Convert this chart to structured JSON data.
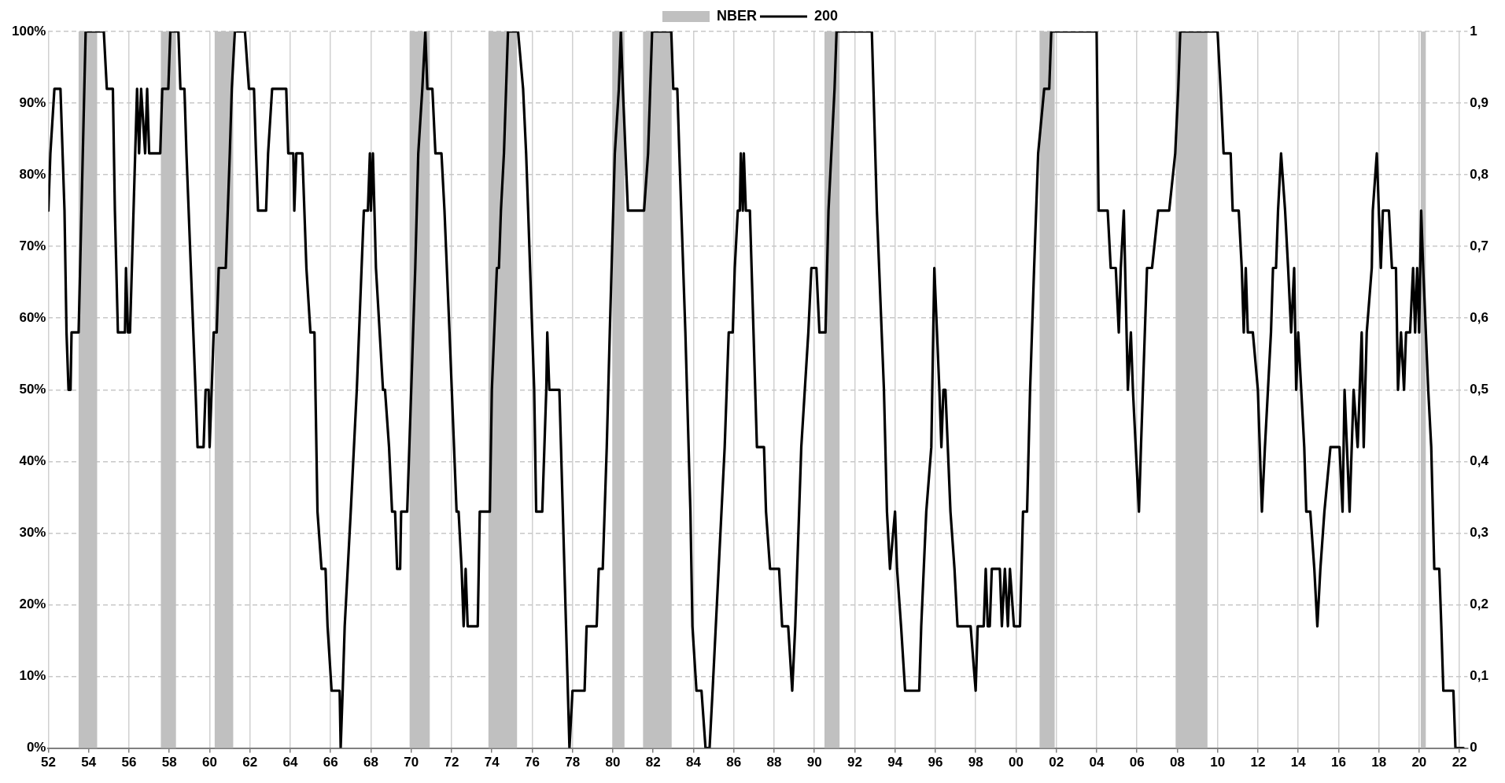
{
  "chart_data": {
    "type": "line",
    "legend": "top",
    "grid": true,
    "marker": "none",
    "line_style": "solid",
    "xlim": [
      1952,
      2022.4
    ],
    "xticks": [
      {
        "value": 1952,
        "label": "52"
      },
      {
        "value": 1954,
        "label": "54"
      },
      {
        "value": 1956,
        "label": "56"
      },
      {
        "value": 1958,
        "label": "58"
      },
      {
        "value": 1960,
        "label": "60"
      },
      {
        "value": 1962,
        "label": "62"
      },
      {
        "value": 1964,
        "label": "64"
      },
      {
        "value": 1966,
        "label": "66"
      },
      {
        "value": 1968,
        "label": "68"
      },
      {
        "value": 1970,
        "label": "70"
      },
      {
        "value": 1972,
        "label": "72"
      },
      {
        "value": 1974,
        "label": "74"
      },
      {
        "value": 1976,
        "label": "76"
      },
      {
        "value": 1978,
        "label": "78"
      },
      {
        "value": 1980,
        "label": "80"
      },
      {
        "value": 1982,
        "label": "82"
      },
      {
        "value": 1984,
        "label": "84"
      },
      {
        "value": 1986,
        "label": "86"
      },
      {
        "value": 1988,
        "label": "88"
      },
      {
        "value": 1990,
        "label": "90"
      },
      {
        "value": 1992,
        "label": "92"
      },
      {
        "value": 1994,
        "label": "94"
      },
      {
        "value": 1996,
        "label": "96"
      },
      {
        "value": 1998,
        "label": "98"
      },
      {
        "value": 2000,
        "label": "00"
      },
      {
        "value": 2002,
        "label": "02"
      },
      {
        "value": 2004,
        "label": "04"
      },
      {
        "value": 2006,
        "label": "06"
      },
      {
        "value": 2008,
        "label": "08"
      },
      {
        "value": 2010,
        "label": "10"
      },
      {
        "value": 2012,
        "label": "12"
      },
      {
        "value": 2014,
        "label": "14"
      },
      {
        "value": 2016,
        "label": "16"
      },
      {
        "value": 2018,
        "label": "18"
      },
      {
        "value": 2020,
        "label": "20"
      },
      {
        "value": 2022,
        "label": "22"
      }
    ],
    "ylim": [
      0,
      1
    ],
    "yticks": [
      {
        "value": 0,
        "label": "0%"
      },
      {
        "value": 0.1,
        "label": "10%"
      },
      {
        "value": 0.2,
        "label": "20%"
      },
      {
        "value": 0.3,
        "label": "30%"
      },
      {
        "value": 0.4,
        "label": "40%"
      },
      {
        "value": 0.5,
        "label": "50%"
      },
      {
        "value": 0.6,
        "label": "60%"
      },
      {
        "value": 0.7,
        "label": "70%"
      },
      {
        "value": 0.8,
        "label": "80%"
      },
      {
        "value": 0.9,
        "label": "90%"
      },
      {
        "value": 1,
        "label": "100%"
      }
    ],
    "y2lim": [
      0,
      1
    ],
    "y2ticks": [
      0,
      {
        "value": 0.1,
        "label": "0,1"
      },
      {
        "value": 0.2,
        "label": "0,2"
      },
      {
        "value": 0.3,
        "label": "0,3"
      },
      {
        "value": 0.4,
        "label": "0,4"
      },
      {
        "value": 0.5,
        "label": "0,5"
      },
      {
        "value": 0.6,
        "label": "0,6"
      },
      {
        "value": 0.7,
        "label": "0,7"
      },
      {
        "value": 0.8,
        "label": "0,8"
      },
      {
        "value": 0.9,
        "label": "0,9"
      },
      1
    ],
    "bands": [
      {
        "axis": "x",
        "from": 1953.5,
        "to": 1954.42,
        "color": "#c0c0c0",
        "label": "NBER"
      },
      {
        "axis": "x",
        "from": 1957.58,
        "to": 1958.33,
        "color": "#c0c0c0"
      },
      {
        "axis": "x",
        "from": 1960.25,
        "to": 1961.17,
        "color": "#c0c0c0"
      },
      {
        "axis": "x",
        "from": 1969.92,
        "to": 1970.92,
        "color": "#c0c0c0"
      },
      {
        "axis": "x",
        "from": 1973.83,
        "to": 1975.25,
        "color": "#c0c0c0"
      },
      {
        "axis": "x",
        "from": 1980.0,
        "to": 1980.58,
        "color": "#c0c0c0"
      },
      {
        "axis": "x",
        "from": 1981.5,
        "to": 1982.92,
        "color": "#c0c0c0"
      },
      {
        "axis": "x",
        "from": 1990.5,
        "to": 1991.25,
        "color": "#c0c0c0"
      },
      {
        "axis": "x",
        "from": 2001.17,
        "to": 2001.92,
        "color": "#c0c0c0"
      },
      {
        "axis": "x",
        "from": 2007.92,
        "to": 2009.5,
        "color": "#c0c0c0"
      },
      {
        "axis": "x",
        "from": 2020.08,
        "to": 2020.33,
        "color": "#c0c0c0"
      }
    ],
    "series": [
      {
        "name": "200",
        "color": "#000000",
        "x": [
          1952.0,
          1952.1,
          1952.3,
          1952.6,
          1952.8,
          1952.9,
          1953.0,
          1953.1,
          1953.15,
          1953.5,
          1953.85,
          1954.75,
          1954.9,
          1955.2,
          1955.3,
          1955.45,
          1955.8,
          1955.85,
          1955.95,
          1956.05,
          1956.4,
          1956.5,
          1956.6,
          1956.8,
          1956.9,
          1957.0,
          1957.55,
          1957.65,
          1957.95,
          1958.05,
          1958.45,
          1958.55,
          1958.75,
          1958.85,
          1959.3,
          1959.4,
          1959.7,
          1959.8,
          1959.95,
          1960.0,
          1960.1,
          1960.2,
          1960.35,
          1960.45,
          1960.8,
          1961.0,
          1961.1,
          1961.25,
          1961.75,
          1961.95,
          1962.2,
          1962.3,
          1962.4,
          1962.8,
          1962.9,
          1963.1,
          1963.8,
          1963.9,
          1964.15,
          1964.2,
          1964.3,
          1964.6,
          1964.7,
          1964.8,
          1965.0,
          1965.2,
          1965.35,
          1965.55,
          1965.75,
          1965.85,
          1966.05,
          1966.45,
          1966.5,
          1966.6,
          1966.7,
          1967.0,
          1967.3,
          1967.65,
          1967.85,
          1967.95,
          1968.0,
          1968.1,
          1968.25,
          1968.6,
          1968.7,
          1968.9,
          1969.05,
          1969.2,
          1969.3,
          1969.45,
          1969.5,
          1969.8,
          1970.2,
          1970.35,
          1970.55,
          1970.7,
          1970.8,
          1971.05,
          1971.2,
          1971.5,
          1971.65,
          1971.9,
          1972.25,
          1972.35,
          1972.5,
          1972.6,
          1972.7,
          1972.8,
          1973.3,
          1973.4,
          1973.9,
          1974.0,
          1974.25,
          1974.35,
          1974.45,
          1974.6,
          1974.8,
          1975.3,
          1975.55,
          1975.7,
          1975.8,
          1976.1,
          1976.2,
          1976.5,
          1976.7,
          1976.75,
          1976.85,
          1977.35,
          1977.6,
          1977.85,
          1978.0,
          1978.6,
          1978.7,
          1979.2,
          1979.3,
          1979.5,
          1979.7,
          1979.85,
          1980.1,
          1980.3,
          1980.4,
          1980.5,
          1980.75,
          1981.55,
          1981.75,
          1981.95,
          1982.9,
          1983.0,
          1983.2,
          1983.3,
          1983.6,
          1983.85,
          1983.95,
          1984.15,
          1984.4,
          1984.6,
          1984.8,
          1984.95,
          1985.25,
          1985.55,
          1985.75,
          1985.95,
          1986.05,
          1986.2,
          1986.3,
          1986.35,
          1986.45,
          1986.5,
          1986.6,
          1986.8,
          1987.15,
          1987.5,
          1987.6,
          1987.8,
          1988.25,
          1988.4,
          1988.7,
          1988.9,
          1989.05,
          1989.35,
          1989.7,
          1989.85,
          1990.1,
          1990.25,
          1990.55,
          1990.7,
          1991.0,
          1991.1,
          1992.85,
          1993.1,
          1993.45,
          1993.6,
          1993.75,
          1994.0,
          1994.1,
          1994.3,
          1994.5,
          1995.2,
          1995.3,
          1995.55,
          1995.8,
          1995.95,
          1996.2,
          1996.3,
          1996.4,
          1996.5,
          1996.75,
          1996.95,
          1997.1,
          1997.75,
          1998.0,
          1998.1,
          1998.4,
          1998.5,
          1998.6,
          1998.7,
          1998.8,
          1999.2,
          1999.3,
          1999.45,
          1999.6,
          1999.7,
          1999.9,
          2000.2,
          2000.35,
          2000.55,
          2000.7,
          2000.9,
          2001.1,
          2001.4,
          2001.65,
          2001.75,
          2004.0,
          2004.1,
          2004.55,
          2004.7,
          2004.95,
          2005.1,
          2005.2,
          2005.35,
          2005.55,
          2005.7,
          2005.8,
          2006.1,
          2006.2,
          2006.5,
          2006.75,
          2007.05,
          2007.6,
          2007.9,
          2008.05,
          2008.15,
          2010.0,
          2010.15,
          2010.3,
          2010.65,
          2010.75,
          2011.05,
          2011.2,
          2011.3,
          2011.4,
          2011.5,
          2011.75,
          2012.0,
          2012.2,
          2012.35,
          2012.65,
          2012.75,
          2012.9,
          2013.0,
          2013.15,
          2013.35,
          2013.5,
          2013.65,
          2013.8,
          2013.9,
          2014.0,
          2014.3,
          2014.4,
          2014.6,
          2014.8,
          2014.95,
          2015.1,
          2015.3,
          2015.6,
          2016.05,
          2016.2,
          2016.3,
          2016.55,
          2016.75,
          2016.95,
          2017.15,
          2017.25,
          2017.4,
          2017.65,
          2017.7,
          2017.9,
          2018.1,
          2018.2,
          2018.5,
          2018.65,
          2018.85,
          2018.95,
          2019.1,
          2019.25,
          2019.35,
          2019.55,
          2019.7,
          2019.8,
          2019.9,
          2020.0,
          2020.1,
          2020.2,
          2020.45,
          2020.6,
          2020.75,
          2021.0,
          2021.1,
          2021.2,
          2021.7,
          2021.8,
          2022.2
        ],
        "values": [
          0.75,
          0.83,
          0.92,
          0.92,
          0.75,
          0.58,
          0.5,
          0.5,
          0.58,
          0.58,
          1,
          1,
          0.92,
          0.92,
          0.75,
          0.58,
          0.58,
          0.67,
          0.58,
          0.58,
          0.92,
          0.83,
          0.92,
          0.83,
          0.92,
          0.83,
          0.83,
          0.92,
          0.92,
          1,
          1,
          0.92,
          0.92,
          0.83,
          0.5,
          0.42,
          0.42,
          0.5,
          0.5,
          0.42,
          0.5,
          0.58,
          0.58,
          0.67,
          0.67,
          0.83,
          0.92,
          1,
          1,
          0.92,
          0.92,
          0.83,
          0.75,
          0.75,
          0.83,
          0.92,
          0.92,
          0.83,
          0.83,
          0.75,
          0.83,
          0.83,
          0.75,
          0.67,
          0.58,
          0.58,
          0.33,
          0.25,
          0.25,
          0.17,
          0.08,
          0.08,
          0,
          0.08,
          0.17,
          0.33,
          0.5,
          0.75,
          0.75,
          0.83,
          0.75,
          0.83,
          0.67,
          0.5,
          0.5,
          0.42,
          0.33,
          0.33,
          0.25,
          0.25,
          0.33,
          0.33,
          0.67,
          0.83,
          0.92,
          1,
          0.92,
          0.92,
          0.83,
          0.83,
          0.75,
          0.58,
          0.33,
          0.33,
          0.25,
          0.17,
          0.25,
          0.17,
          0.17,
          0.33,
          0.33,
          0.5,
          0.67,
          0.67,
          0.75,
          0.83,
          1,
          1,
          0.92,
          0.83,
          0.75,
          0.5,
          0.33,
          0.33,
          0.5,
          0.58,
          0.5,
          0.5,
          0.25,
          0,
          0.08,
          0.08,
          0.17,
          0.17,
          0.25,
          0.25,
          0.42,
          0.58,
          0.83,
          0.92,
          1,
          0.92,
          0.75,
          0.75,
          0.83,
          1,
          1,
          0.92,
          0.92,
          0.83,
          0.58,
          0.33,
          0.17,
          0.08,
          0.08,
          0,
          0,
          0.08,
          0.25,
          0.42,
          0.58,
          0.58,
          0.67,
          0.75,
          0.75,
          0.83,
          0.75,
          0.83,
          0.75,
          0.75,
          0.42,
          0.42,
          0.33,
          0.25,
          0.25,
          0.17,
          0.17,
          0.08,
          0.17,
          0.42,
          0.58,
          0.67,
          0.67,
          0.58,
          0.58,
          0.75,
          0.92,
          1,
          1,
          0.75,
          0.5,
          0.33,
          0.25,
          0.33,
          0.25,
          0.17,
          0.08,
          0.08,
          0.17,
          0.33,
          0.42,
          0.67,
          0.5,
          0.42,
          0.5,
          0.5,
          0.33,
          0.25,
          0.17,
          0.17,
          0.08,
          0.17,
          0.17,
          0.25,
          0.17,
          0.17,
          0.25,
          0.25,
          0.17,
          0.25,
          0.17,
          0.25,
          0.17,
          0.17,
          0.33,
          0.33,
          0.5,
          0.67,
          0.83,
          0.92,
          0.92,
          1,
          1,
          0.75,
          0.75,
          0.67,
          0.67,
          0.58,
          0.67,
          0.75,
          0.5,
          0.58,
          0.5,
          0.33,
          0.42,
          0.67,
          0.67,
          0.75,
          0.75,
          0.83,
          0.92,
          1,
          1,
          0.92,
          0.83,
          0.83,
          0.75,
          0.75,
          0.67,
          0.58,
          0.67,
          0.58,
          0.58,
          0.5,
          0.33,
          0.42,
          0.58,
          0.67,
          0.67,
          0.75,
          0.83,
          0.75,
          0.67,
          0.58,
          0.67,
          0.5,
          0.58,
          0.42,
          0.33,
          0.33,
          0.25,
          0.17,
          0.25,
          0.33,
          0.42,
          0.42,
          0.33,
          0.5,
          0.33,
          0.5,
          0.42,
          0.58,
          0.42,
          0.58,
          0.67,
          0.75,
          0.83,
          0.67,
          0.75,
          0.75,
          0.67,
          0.67,
          0.5,
          0.58,
          0.5,
          0.58,
          0.58,
          0.67,
          0.58,
          0.67,
          0.58,
          0.75,
          0.67,
          0.5,
          0.42,
          0.25,
          0.25,
          0.17,
          0.08,
          0.08,
          0,
          0
        ]
      }
    ]
  }
}
